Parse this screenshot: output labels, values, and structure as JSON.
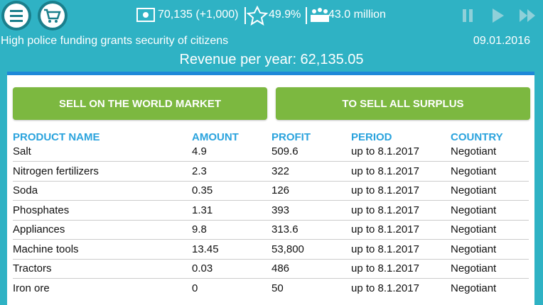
{
  "header": {
    "money": "70,135 (+1,000)",
    "rating": "49.9%",
    "population": "43.0 million",
    "message": "High police funding grants security of citizens",
    "date": "09.01.2016",
    "revenue": "Revenue per year: 62,135.05"
  },
  "buttons": [
    "SELL ON THE WORLD MARKET",
    "TO SELL ALL SURPLUS"
  ],
  "table": {
    "columns": [
      "PRODUCT NAME",
      "AMOUNT",
      "PROFIT",
      "PERIOD",
      "COUNTRY"
    ],
    "rows": [
      [
        "Salt",
        "4.9",
        "509.6",
        "up to 8.1.2017",
        "Negotiant"
      ],
      [
        "Nitrogen fertilizers",
        "2.3",
        "322",
        "up to 8.1.2017",
        "Negotiant"
      ],
      [
        "Soda",
        "0.35",
        "126",
        "up to 8.1.2017",
        "Negotiant"
      ],
      [
        "Phosphates",
        "1.31",
        "393",
        "up to 8.1.2017",
        "Negotiant"
      ],
      [
        "Appliances",
        "9.8",
        "313.6",
        "up to 8.1.2017",
        "Negotiant"
      ],
      [
        "Machine tools",
        "13.45",
        "53,800",
        "up to 8.1.2017",
        "Negotiant"
      ],
      [
        "Tractors",
        "0.03",
        "486",
        "up to 8.1.2017",
        "Negotiant"
      ],
      [
        "Iron ore",
        "0",
        "50",
        "up to 8.1.2017",
        "Negotiant"
      ]
    ]
  }
}
